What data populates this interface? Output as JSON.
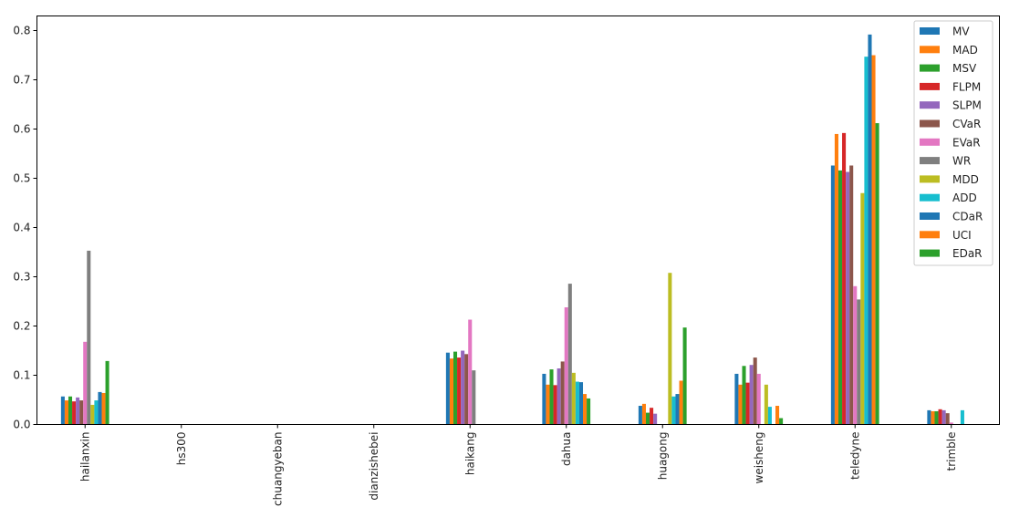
{
  "chart_data": {
    "type": "bar",
    "title": "",
    "xlabel": "",
    "ylabel": "",
    "ylim": [
      0,
      0.83
    ],
    "yticks": [
      "0.0",
      "0.1",
      "0.2",
      "0.3",
      "0.4",
      "0.5",
      "0.6",
      "0.7",
      "0.8"
    ],
    "ytick_values": [
      0,
      0.1,
      0.2,
      0.3,
      0.4,
      0.5,
      0.6,
      0.7,
      0.8
    ],
    "legend_position": "top-right",
    "grid": false,
    "categories": [
      "hailanxin",
      "hs300",
      "chuangyeban",
      "dianzishebei",
      "haikang",
      "dahua",
      "huagong",
      "weisheng",
      "teledyne",
      "trimble"
    ],
    "series": [
      {
        "name": "MV",
        "color": "#1f77b4",
        "values": [
          0.056,
          0,
          0,
          0,
          0.145,
          0.102,
          0.037,
          0.102,
          0.525,
          0.028
        ]
      },
      {
        "name": "MAD",
        "color": "#ff7f0e",
        "values": [
          0.048,
          0,
          0,
          0,
          0.133,
          0.08,
          0.041,
          0.08,
          0.589,
          0.026
        ]
      },
      {
        "name": "MSV",
        "color": "#2ca02c",
        "values": [
          0.056,
          0,
          0,
          0,
          0.147,
          0.111,
          0.023,
          0.118,
          0.515,
          0.026
        ]
      },
      {
        "name": "FLPM",
        "color": "#d62728",
        "values": [
          0.046,
          0,
          0,
          0,
          0.135,
          0.079,
          0.033,
          0.084,
          0.591,
          0.03
        ]
      },
      {
        "name": "SLPM",
        "color": "#9467bd",
        "values": [
          0.054,
          0,
          0,
          0,
          0.149,
          0.113,
          0.021,
          0.12,
          0.512,
          0.028
        ]
      },
      {
        "name": "CVaR",
        "color": "#8c564b",
        "values": [
          0.048,
          0,
          0,
          0,
          0.142,
          0.127,
          0,
          0.135,
          0.525,
          0.022
        ]
      },
      {
        "name": "EVaR",
        "color": "#e377c2",
        "values": [
          0.167,
          0,
          0,
          0,
          0.212,
          0.237,
          0,
          0.102,
          0.28,
          0.003
        ]
      },
      {
        "name": "WR",
        "color": "#7f7f7f",
        "values": [
          0.352,
          0,
          0,
          0,
          0.109,
          0.285,
          0,
          0,
          0.253,
          0
        ]
      },
      {
        "name": "MDD",
        "color": "#bcbd22",
        "values": [
          0.039,
          0,
          0,
          0,
          0,
          0.104,
          0.307,
          0.08,
          0.469,
          0
        ]
      },
      {
        "name": "ADD",
        "color": "#17becf",
        "values": [
          0.048,
          0,
          0,
          0,
          0,
          0.086,
          0.056,
          0.035,
          0.746,
          0.028
        ]
      },
      {
        "name": "CDaR",
        "color": "#1f77b4",
        "values": [
          0.065,
          0,
          0,
          0,
          0,
          0.085,
          0.061,
          0,
          0.791,
          0
        ]
      },
      {
        "name": "UCI",
        "color": "#ff7f0e",
        "values": [
          0.063,
          0,
          0,
          0,
          0,
          0.061,
          0.088,
          0.037,
          0.749,
          0
        ]
      },
      {
        "name": "EDaR",
        "color": "#2ca02c",
        "values": [
          0.128,
          0,
          0,
          0,
          0,
          0.052,
          0.196,
          0.012,
          0.611,
          0
        ]
      }
    ]
  }
}
